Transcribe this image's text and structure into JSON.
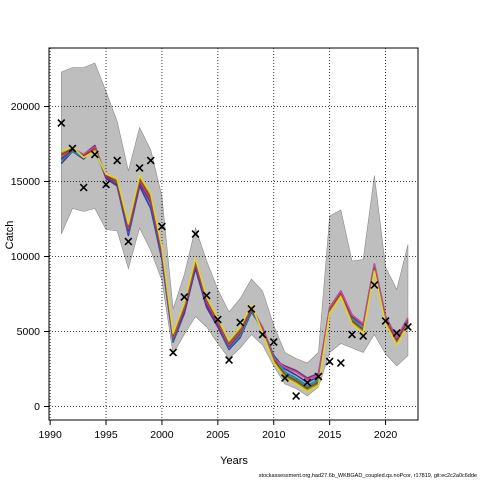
{
  "chart_data": {
    "type": "line",
    "xlabel": "Years",
    "ylabel": "Catch",
    "xlim": [
      1989.9,
      2022.9
    ],
    "ylim": [
      -900,
      23900
    ],
    "xticks": [
      1990,
      1995,
      2000,
      2005,
      2010,
      2015,
      2020
    ],
    "yticks": [
      0,
      5000,
      10000,
      15000,
      20000
    ],
    "grid": true,
    "footnote": "stockassessment.org,had27.6b_WKBGAD_coupled.qs.noPcor, r17819, git:ec2c2a0c6dde",
    "x": [
      1991,
      1992,
      1993,
      1994,
      1995,
      1996,
      1997,
      1998,
      1999,
      2000,
      2001,
      2002,
      2003,
      2004,
      2005,
      2006,
      2007,
      2008,
      2009,
      2010,
      2011,
      2012,
      2013,
      2014,
      2015,
      2016,
      2017,
      2018,
      2019,
      2020,
      2021,
      2022
    ],
    "band": {
      "upper": [
        22300,
        22600,
        22600,
        22900,
        21000,
        19000,
        15700,
        18600,
        17100,
        14000,
        6500,
        8800,
        11900,
        9700,
        7800,
        6300,
        7200,
        8500,
        7700,
        5400,
        3600,
        3200,
        2900,
        3600,
        12700,
        13100,
        9700,
        9800,
        15400,
        9300,
        7800,
        10800
      ],
      "lower": [
        11500,
        13200,
        13000,
        13200,
        11800,
        11700,
        9200,
        11900,
        10400,
        8400,
        3500,
        4800,
        6000,
        5300,
        4200,
        3200,
        3900,
        4800,
        4100,
        2700,
        1500,
        1200,
        700,
        1300,
        3600,
        4200,
        3900,
        3600,
        4800,
        3500,
        2700,
        3400
      ]
    },
    "observed_catch": [
      18900,
      17200,
      14600,
      16800,
      14800,
      16400,
      11000,
      15900,
      16400,
      12000,
      3600,
      7300,
      11500,
      7400,
      5800,
      3100,
      5600,
      6500,
      4800,
      4300,
      1900,
      700,
      1600,
      2000,
      3000,
      2900,
      4800,
      4700,
      8100,
      5700,
      4900,
      5300
    ],
    "series": [
      {
        "color": "#3b3b9a",
        "values": [
          16200,
          17000,
          16500,
          17300,
          15200,
          14700,
          11400,
          14700,
          13200,
          9800,
          4300,
          6200,
          9200,
          6600,
          5300,
          3800,
          4600,
          6300,
          5200,
          3400,
          2500,
          2100,
          1600,
          2000,
          6600,
          7700,
          6100,
          5500,
          9500,
          6000,
          4600,
          5900
        ]
      },
      {
        "color": "#1f8ab0",
        "values": [
          16400,
          17000,
          16600,
          17100,
          15300,
          14800,
          11600,
          14900,
          13500,
          10000,
          4400,
          6400,
          9400,
          6800,
          5400,
          3900,
          4700,
          6400,
          5100,
          3300,
          2300,
          1900,
          1400,
          1800,
          6500,
          7600,
          5900,
          5200,
          9300,
          5800,
          4400,
          5700
        ]
      },
      {
        "color": "#22a06b",
        "values": [
          16600,
          17100,
          16700,
          17200,
          15400,
          14900,
          11800,
          15000,
          13700,
          10200,
          4500,
          6500,
          9500,
          6900,
          5500,
          4000,
          4800,
          6500,
          5000,
          3200,
          2200,
          1800,
          1300,
          1700,
          6400,
          7500,
          5800,
          5100,
          9200,
          5700,
          4300,
          5600
        ]
      },
      {
        "color": "#7c2a7e",
        "values": [
          16500,
          17100,
          16800,
          17400,
          15300,
          14800,
          11700,
          14900,
          13600,
          10100,
          4500,
          6400,
          9400,
          6800,
          5400,
          4000,
          4900,
          6500,
          5200,
          3100,
          2700,
          2400,
          1900,
          2200,
          6500,
          7600,
          6000,
          5400,
          9400,
          5900,
          4500,
          5800
        ]
      },
      {
        "color": "#c0509a",
        "values": [
          16700,
          17200,
          16800,
          17300,
          15400,
          15000,
          11900,
          15100,
          13800,
          10300,
          4600,
          6600,
          9600,
          7000,
          5600,
          4100,
          5000,
          6600,
          5300,
          3200,
          2600,
          2300,
          1800,
          2100,
          6600,
          7700,
          6100,
          5500,
          9500,
          6000,
          4600,
          5900
        ]
      },
      {
        "color": "#c02424",
        "values": [
          16800,
          17200,
          16700,
          17200,
          15400,
          15000,
          12000,
          15200,
          13900,
          10400,
          4700,
          6700,
          9700,
          7100,
          5700,
          4200,
          5100,
          6600,
          5100,
          3100,
          2100,
          1700,
          1200,
          1600,
          6400,
          7500,
          5700,
          5100,
          9200,
          5700,
          4300,
          5600
        ]
      },
      {
        "color": "#7aa01e",
        "values": [
          16900,
          17300,
          16600,
          17100,
          15500,
          15100,
          12100,
          15300,
          14100,
          10500,
          4800,
          6800,
          9800,
          7200,
          5800,
          4300,
          5200,
          6700,
          5000,
          3000,
          2000,
          1600,
          1100,
          1500,
          6300,
          7400,
          5600,
          5000,
          9100,
          5600,
          4200,
          5500
        ]
      },
      {
        "color": "#e0d23a",
        "values": [
          17000,
          17300,
          16600,
          17000,
          15500,
          15200,
          12200,
          15400,
          14200,
          10600,
          4900,
          6900,
          9900,
          7300,
          5900,
          4400,
          5300,
          6800,
          4900,
          2900,
          1900,
          1500,
          1000,
          1400,
          6200,
          7300,
          5500,
          4900,
          9000,
          5500,
          4100,
          5400
        ]
      }
    ]
  }
}
